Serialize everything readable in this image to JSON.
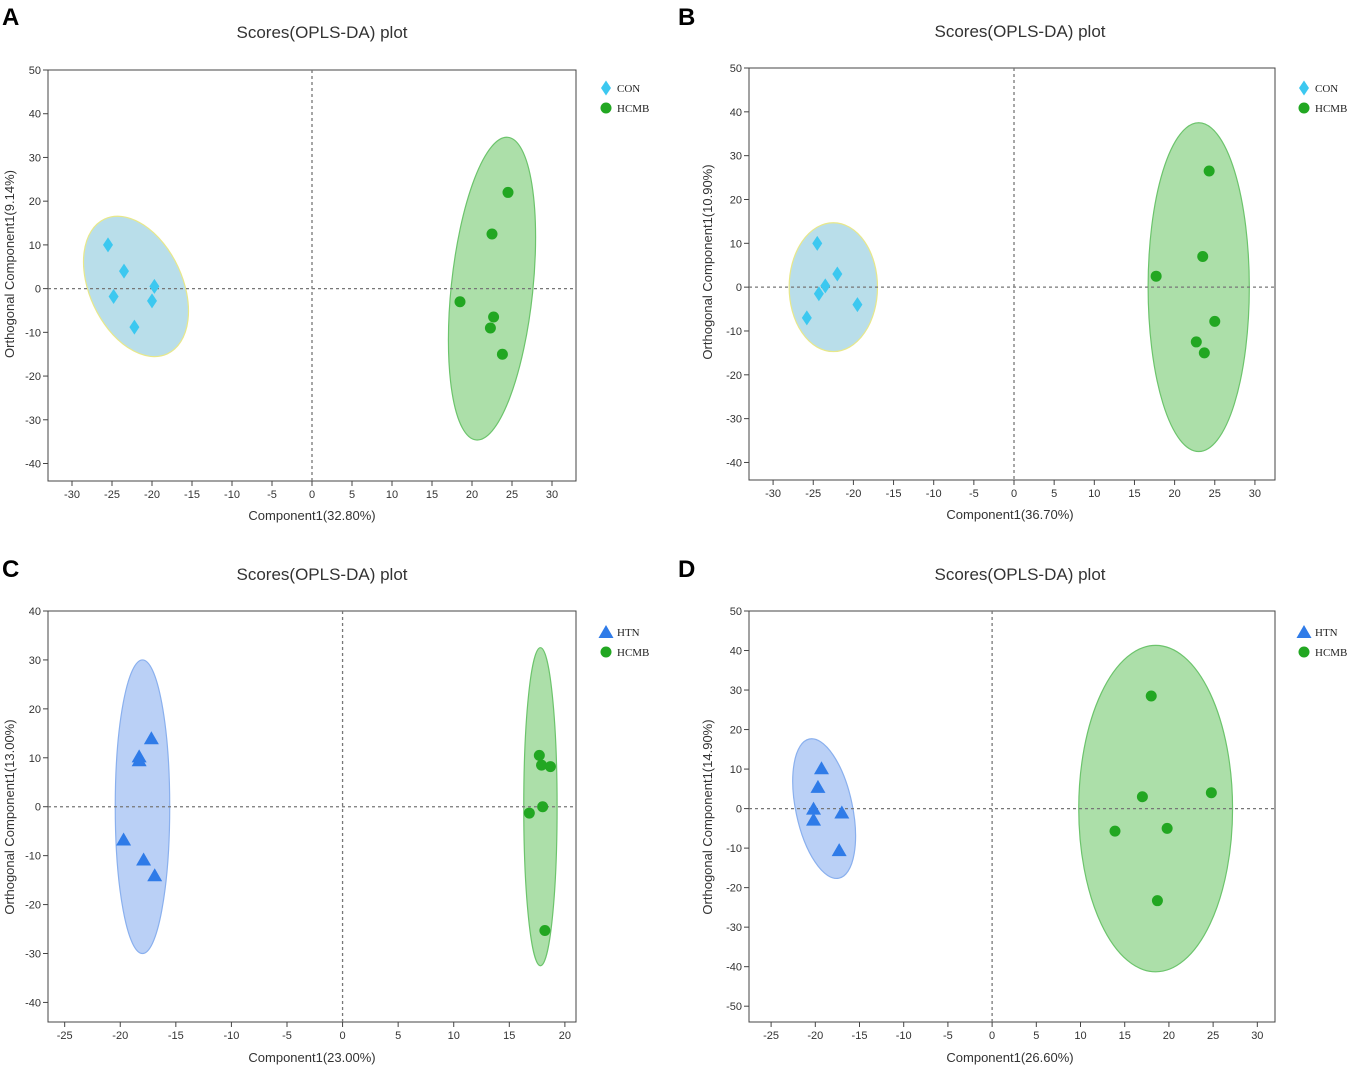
{
  "chart_data": [
    {
      "panel": "A",
      "type": "scatter",
      "title": "Scores(OPLS-DA) plot",
      "xlabel": "Component1(32.80%)",
      "ylabel": "Orthogonal Component1(9.14%)",
      "xlim": [
        -33,
        33
      ],
      "ylim": [
        -44,
        50
      ],
      "xticks": [
        -30,
        -25,
        -20,
        -15,
        -10,
        -5,
        0,
        5,
        10,
        15,
        20,
        25,
        30
      ],
      "yticks": [
        -40,
        -30,
        -20,
        -10,
        0,
        10,
        20,
        30,
        40,
        50
      ],
      "legend_position": "top-right",
      "series": [
        {
          "name": "CON",
          "marker": "diamond",
          "color": "#3cc8f0",
          "points": [
            [
              -25.5,
              10
            ],
            [
              -23.5,
              4
            ],
            [
              -24.8,
              -1.8
            ],
            [
              -22.2,
              -8.8
            ],
            [
              -19.7,
              0.5
            ],
            [
              -20,
              -2.8
            ]
          ],
          "ellipse": {
            "cx": -22,
            "cy": 0.5,
            "rx": 5.8,
            "ry": 17,
            "angle": -25,
            "fill": "#add8e6",
            "stroke": "#e8e88a"
          }
        },
        {
          "name": "HCMB",
          "marker": "circle",
          "color": "#22a722",
          "points": [
            [
              24.5,
              22
            ],
            [
              22.5,
              12.5
            ],
            [
              18.5,
              -3
            ],
            [
              22.7,
              -6.5
            ],
            [
              22.3,
              -9
            ],
            [
              23.8,
              -15
            ]
          ],
          "ellipse": {
            "cx": 22.5,
            "cy": 0,
            "rx": 5.1,
            "ry": 34.8,
            "angle": 6,
            "fill": "#9ed99a",
            "stroke": "#6cc46c"
          }
        }
      ]
    },
    {
      "panel": "B",
      "type": "scatter",
      "title": "Scores(OPLS-DA) plot",
      "xlabel": "Component1(36.70%)",
      "ylabel": "Orthogonal Component1(10.90%)",
      "xlim": [
        -33,
        32.5
      ],
      "ylim": [
        -44,
        50
      ],
      "xticks": [
        -30,
        -25,
        -20,
        -15,
        -10,
        -5,
        0,
        5,
        10,
        15,
        20,
        25,
        30
      ],
      "yticks": [
        -40,
        -30,
        -20,
        -10,
        0,
        10,
        20,
        30,
        40,
        50
      ],
      "legend_position": "top-right",
      "series": [
        {
          "name": "CON",
          "marker": "diamond",
          "color": "#3cc8f0",
          "points": [
            [
              -24.5,
              10
            ],
            [
              -22,
              3
            ],
            [
              -23.5,
              0.3
            ],
            [
              -24.3,
              -1.5
            ],
            [
              -19.5,
              -4
            ],
            [
              -25.8,
              -7
            ]
          ],
          "ellipse": {
            "cx": -22.5,
            "cy": 0,
            "rx": 5.5,
            "ry": 14.7,
            "angle": 0,
            "fill": "#add8e6",
            "stroke": "#e8e88a"
          }
        },
        {
          "name": "HCMB",
          "marker": "circle",
          "color": "#22a722",
          "points": [
            [
              24.3,
              26.5
            ],
            [
              23.5,
              7
            ],
            [
              17.7,
              2.5
            ],
            [
              25,
              -7.8
            ],
            [
              22.7,
              -12.5
            ],
            [
              23.7,
              -15
            ]
          ],
          "ellipse": {
            "cx": 23,
            "cy": 0,
            "rx": 6.3,
            "ry": 37.5,
            "angle": 0,
            "fill": "#9ed99a",
            "stroke": "#6cc46c"
          }
        }
      ]
    },
    {
      "panel": "C",
      "type": "scatter",
      "title": "Scores(OPLS-DA) plot",
      "xlabel": "Component1(23.00%)",
      "ylabel": "Orthogonal Component1(13.00%)",
      "xlim": [
        -26.5,
        21
      ],
      "ylim": [
        -44,
        40
      ],
      "xticks": [
        -25,
        -20,
        -15,
        -10,
        -5,
        0,
        5,
        10,
        15,
        20
      ],
      "yticks": [
        -40,
        -30,
        -20,
        -10,
        0,
        10,
        20,
        30,
        40
      ],
      "legend_position": "top-right",
      "series": [
        {
          "name": "HTN",
          "marker": "triangle",
          "color": "#2f7be8",
          "points": [
            [
              -17.2,
              14
            ],
            [
              -18.3,
              10.3
            ],
            [
              -18.3,
              9.5
            ],
            [
              -19.7,
              -6.7
            ],
            [
              -17.9,
              -10.8
            ],
            [
              -16.9,
              -14
            ]
          ],
          "ellipse": {
            "cx": -18,
            "cy": 0,
            "rx": 2.45,
            "ry": 30,
            "angle": 0,
            "fill": "#aec8f5",
            "stroke": "#8ab0ee"
          }
        },
        {
          "name": "HCMB",
          "marker": "circle",
          "color": "#22a722",
          "points": [
            [
              17.7,
              10.5
            ],
            [
              17.9,
              8.5
            ],
            [
              18.7,
              8.2
            ],
            [
              18,
              0
            ],
            [
              16.8,
              -1.3
            ],
            [
              18.2,
              -25.3
            ]
          ],
          "ellipse": {
            "cx": 17.8,
            "cy": 0,
            "rx": 1.5,
            "ry": 32.5,
            "angle": 0,
            "fill": "#9ed99a",
            "stroke": "#6cc46c"
          }
        }
      ]
    },
    {
      "panel": "D",
      "type": "scatter",
      "title": "Scores(OPLS-DA) plot",
      "xlabel": "Component1(26.60%)",
      "ylabel": "Orthogonal Component1(14.90%)",
      "xlim": [
        -27.5,
        32
      ],
      "ylim": [
        -54,
        50
      ],
      "xticks": [
        -25,
        -20,
        -15,
        -10,
        -5,
        0,
        5,
        10,
        15,
        20,
        25,
        30
      ],
      "yticks": [
        -50,
        -40,
        -30,
        -20,
        -10,
        0,
        10,
        20,
        30,
        40,
        50
      ],
      "legend_position": "top-right",
      "series": [
        {
          "name": "HTN",
          "marker": "triangle",
          "color": "#2f7be8",
          "points": [
            [
              -19.3,
              10.2
            ],
            [
              -19.7,
              5.5
            ],
            [
              -20.2,
              0
            ],
            [
              -17,
              -1
            ],
            [
              -20.2,
              -2.8
            ],
            [
              -17.3,
              -10.5
            ]
          ],
          "ellipse": {
            "cx": -19,
            "cy": 0,
            "rx": 3.2,
            "ry": 18,
            "angle": -12,
            "fill": "#aec8f5",
            "stroke": "#8ab0ee"
          }
        },
        {
          "name": "HCMB",
          "marker": "circle",
          "color": "#22a722",
          "points": [
            [
              18,
              28.5
            ],
            [
              17,
              3
            ],
            [
              24.8,
              4
            ],
            [
              13.9,
              -5.7
            ],
            [
              19.8,
              -5
            ],
            [
              18.7,
              -23.3
            ]
          ],
          "ellipse": {
            "cx": 18.5,
            "cy": 0,
            "rx": 8.7,
            "ry": 41.3,
            "angle": 0,
            "fill": "#9ed99a",
            "stroke": "#6cc46c"
          }
        }
      ]
    }
  ]
}
